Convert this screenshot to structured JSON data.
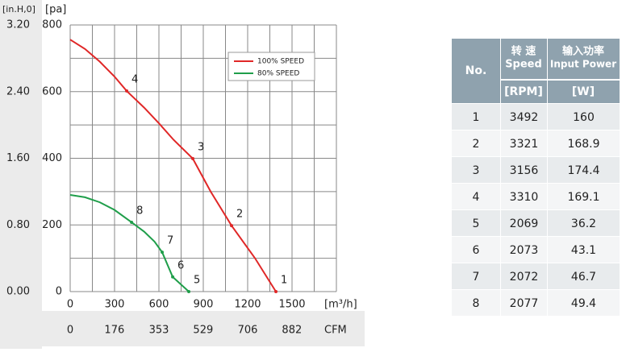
{
  "chart_data": {
    "type": "line",
    "xlabel": "[m³/h]",
    "ylabel": "[pa]",
    "y2label": "[in.H,0]",
    "x2label": "CFM",
    "xlim": [
      0,
      1800
    ],
    "xticks": [
      0,
      300,
      600,
      900,
      1200,
      1500
    ],
    "xminorticks": [
      150,
      450,
      750,
      1050,
      1350,
      1650,
      1800
    ],
    "ylim": [
      0,
      800
    ],
    "yticks": [
      0,
      200,
      400,
      600,
      800
    ],
    "yminorticks": [
      100,
      300,
      500,
      700
    ],
    "y2lim": [
      0,
      3.2
    ],
    "y2ticks": [
      {
        "value": 0,
        "label": "0.00"
      },
      {
        "value": 0.8,
        "label": "0.80"
      },
      {
        "value": 1.6,
        "label": "1.60"
      },
      {
        "value": 2.4,
        "label": "2.40"
      },
      {
        "value": 3.2,
        "label": "3.20"
      }
    ],
    "x2lim": [
      0,
      1059
    ],
    "x2ticks": [
      0,
      176,
      353,
      529,
      706,
      882
    ],
    "grid": true,
    "series": [
      {
        "name": "100% SPEED",
        "color": "#e02727",
        "x": [
          0,
          100,
          200,
          300,
          382,
          500,
          600,
          700,
          829,
          950,
          1091,
          1250,
          1391
        ],
        "values": [
          756,
          728,
          690,
          645,
          602,
          552,
          505,
          455,
          399,
          300,
          198,
          100,
          0
        ],
        "points": [
          {
            "label": "4",
            "x": 382,
            "y": 602
          },
          {
            "label": "3",
            "x": 829,
            "y": 399
          },
          {
            "label": "2",
            "x": 1091,
            "y": 198
          },
          {
            "label": "1",
            "x": 1391,
            "y": 0
          }
        ]
      },
      {
        "name": "80% SPEED",
        "color": "#1f9e4a",
        "x": [
          0,
          100,
          200,
          300,
          415,
          500,
          570,
          622,
          693,
          802
        ],
        "values": [
          290,
          283,
          268,
          245,
          208,
          180,
          150,
          118,
          44,
          0
        ],
        "points": [
          {
            "label": "8",
            "x": 415,
            "y": 208
          },
          {
            "label": "7",
            "x": 622,
            "y": 118
          },
          {
            "label": "6",
            "x": 693,
            "y": 44
          },
          {
            "label": "5",
            "x": 802,
            "y": 0
          }
        ]
      }
    ]
  },
  "table": {
    "header": [
      "No.",
      "转 速",
      "Speed",
      "输入功率",
      "Input Power",
      "[RPM]",
      "[W]"
    ],
    "rows": [
      [
        1,
        3492,
        160
      ],
      [
        2,
        3321,
        168.9
      ],
      [
        3,
        3156,
        174.4
      ],
      [
        4,
        3310,
        169.1
      ],
      [
        5,
        2069,
        36.2
      ],
      [
        6,
        2073,
        43.1
      ],
      [
        7,
        2072,
        46.7
      ],
      [
        8,
        2077,
        49.4
      ]
    ]
  }
}
